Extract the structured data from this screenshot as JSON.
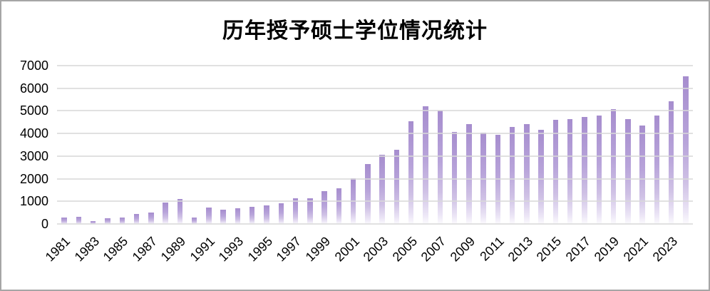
{
  "title": "历年授予硕士学位情况统计",
  "chart_data": {
    "type": "bar",
    "title": "历年授予硕士学位情况统计",
    "xlabel": "",
    "ylabel": "",
    "ylim": [
      0,
      7000
    ],
    "yticks": [
      0,
      1000,
      2000,
      3000,
      4000,
      5000,
      6000,
      7000
    ],
    "grid": true,
    "legend": "none",
    "categories": [
      "1981",
      "1982",
      "1983",
      "1984",
      "1985",
      "1986",
      "1987",
      "1988",
      "1989",
      "1990",
      "1991",
      "1992",
      "1993",
      "1994",
      "1995",
      "1996",
      "1997",
      "1998",
      "1999",
      "2000",
      "2001",
      "2002",
      "2003",
      "2004",
      "2005",
      "2006",
      "2007",
      "2008",
      "2009",
      "2010",
      "2011",
      "2012",
      "2013",
      "2014",
      "2015",
      "2016",
      "2017",
      "2018",
      "2019",
      "2020",
      "2021",
      "2022",
      "2023",
      "2024"
    ],
    "values": [
      300,
      330,
      140,
      240,
      270,
      430,
      500,
      950,
      1100,
      280,
      720,
      630,
      680,
      760,
      810,
      920,
      1150,
      1150,
      1440,
      1580,
      2030,
      2640,
      3050,
      3280,
      4550,
      5220,
      5000,
      4060,
      4420,
      4030,
      3950,
      4280,
      4420,
      4160,
      4600,
      4640,
      4740,
      4780,
      5070,
      4640,
      4340,
      4800,
      5410,
      6520
    ],
    "xtick_labels": [
      "1981",
      "1983",
      "1985",
      "1987",
      "1989",
      "1991",
      "1993",
      "1995",
      "1997",
      "1999",
      "2001",
      "2003",
      "2005",
      "2007",
      "2009",
      "2011",
      "2013",
      "2015",
      "2017",
      "2019",
      "2021",
      "2023"
    ]
  },
  "colors": {
    "bar_gradient_top": "#a68dce",
    "bar_gradient_mid": "#b8a4da",
    "bar_gradient_bottom": "#fbfafd",
    "gridline": "#d9d9d9",
    "axis_text": "#000000",
    "frame_border": "#a6a6a6",
    "background": "#ffffff"
  }
}
